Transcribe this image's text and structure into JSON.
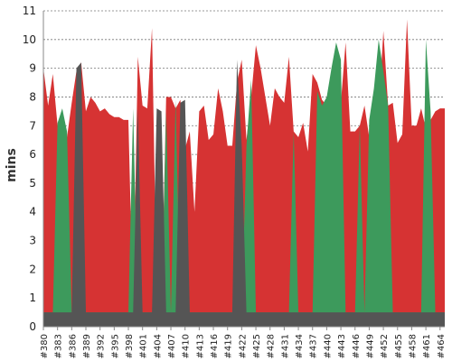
{
  "chart_data": {
    "type": "area",
    "title": "",
    "xlabel": "",
    "ylabel": "mins",
    "ylim": [
      0,
      11
    ],
    "yticks": [
      "0",
      "1",
      "2",
      "3",
      "4",
      "5",
      "6",
      "7",
      "8",
      "9",
      "10",
      "11"
    ],
    "grid": true,
    "legend": "none",
    "x": [
      "#380",
      "#381",
      "#382",
      "#383",
      "#384",
      "#385",
      "#386",
      "#387",
      "#388",
      "#389",
      "#390",
      "#391",
      "#392",
      "#393",
      "#394",
      "#395",
      "#396",
      "#397",
      "#398",
      "#399",
      "#400",
      "#401",
      "#402",
      "#403",
      "#404",
      "#405",
      "#406",
      "#407",
      "#408",
      "#409",
      "#410",
      "#411",
      "#412",
      "#413",
      "#414",
      "#415",
      "#416",
      "#417",
      "#418",
      "#419",
      "#420",
      "#421",
      "#422",
      "#423",
      "#424",
      "#425",
      "#426",
      "#427",
      "#428",
      "#429",
      "#430",
      "#431",
      "#432",
      "#433",
      "#434",
      "#435",
      "#436",
      "#437",
      "#438",
      "#439",
      "#440",
      "#441",
      "#442",
      "#443",
      "#444",
      "#445",
      "#446",
      "#447",
      "#448",
      "#449",
      "#450",
      "#451",
      "#452",
      "#453",
      "#454",
      "#455",
      "#456",
      "#457",
      "#458",
      "#459",
      "#460",
      "#461",
      "#462",
      "#463",
      "#464",
      "#465"
    ],
    "xtick_labels": [
      "#380",
      "#383",
      "#386",
      "#389",
      "#392",
      "#395",
      "#398",
      "#401",
      "#404",
      "#407",
      "#410",
      "#413",
      "#416",
      "#419",
      "#422",
      "#425",
      "#428",
      "#431",
      "#434",
      "#437",
      "#440",
      "#443",
      "#446",
      "#449",
      "#452",
      "#455",
      "#458",
      "#461",
      "#464"
    ],
    "series": [
      {
        "color": "#d63333",
        "values": [
          9.0,
          7.7,
          8.8,
          7.0,
          7.5,
          6.6,
          7.8,
          8.9,
          9.2,
          7.5,
          8.0,
          7.8,
          7.5,
          7.6,
          7.4,
          7.3,
          7.3,
          7.2,
          7.2,
          0.5,
          9.4,
          7.7,
          7.6,
          10.4,
          1.0,
          0.5,
          8.0,
          8.0,
          7.6,
          7.9,
          6.2,
          6.8,
          4.0,
          7.5,
          7.7,
          6.5,
          6.7,
          8.3,
          7.5,
          6.3,
          6.3,
          8.5,
          9.3,
          6.5,
          8.0,
          9.8,
          9.0,
          8.0,
          7.0,
          8.3,
          8.0,
          7.8,
          9.4,
          6.8,
          6.6,
          7.1,
          6.1,
          8.8,
          8.5,
          7.9,
          7.7,
          7.7,
          7.7,
          7.8,
          9.9,
          6.8,
          6.8,
          7.0,
          7.7,
          6.6,
          7.2,
          7.5,
          10.3,
          7.7,
          7.8,
          6.4,
          6.7,
          10.7,
          7.0,
          7.0,
          7.6,
          6.9,
          7.2,
          7.5,
          7.6,
          7.6
        ]
      },
      {
        "color": "#3d9a5c",
        "values": [
          0.5,
          0.5,
          0.5,
          7.1,
          7.6,
          6.8,
          0.5,
          0.5,
          0.5,
          0.5,
          0.5,
          0.5,
          0.5,
          0.5,
          0.5,
          0.5,
          0.5,
          0.5,
          0.5,
          7.6,
          0.5,
          0.5,
          0.5,
          0.5,
          0.5,
          0.5,
          7.5,
          0.5,
          7.9,
          0.5,
          0.5,
          0.5,
          0.5,
          0.5,
          0.5,
          0.5,
          0.5,
          0.5,
          0.5,
          0.5,
          0.5,
          0.5,
          0.5,
          6.3,
          8.6,
          0.5,
          0.5,
          0.5,
          0.5,
          0.5,
          0.5,
          0.5,
          0.5,
          6.8,
          0.5,
          0.5,
          0.5,
          0.5,
          8.2,
          7.7,
          8.0,
          9.0,
          9.9,
          9.3,
          0.5,
          0.5,
          0.5,
          7.0,
          0.5,
          7.2,
          8.3,
          10.0,
          8.9,
          7.7,
          0.5,
          0.5,
          0.5,
          0.5,
          0.5,
          0.5,
          0.5,
          10.0,
          7.5,
          0.5,
          0.5,
          0.5
        ]
      },
      {
        "color": "#555555",
        "values": [
          0.5,
          0.5,
          0.5,
          0.5,
          0.5,
          0.5,
          0.5,
          9.0,
          9.2,
          0.5,
          0.5,
          0.5,
          0.5,
          0.5,
          0.5,
          0.5,
          0.5,
          0.5,
          0.5,
          0.5,
          7.6,
          0.5,
          0.5,
          0.5,
          7.6,
          7.5,
          0.5,
          0.5,
          0.5,
          7.8,
          7.9,
          0.5,
          0.5,
          0.5,
          0.5,
          0.5,
          0.5,
          0.5,
          0.5,
          0.5,
          0.5,
          9.3,
          6.3,
          0.5,
          0.5,
          0.5,
          0.5,
          0.5,
          0.5,
          0.5,
          0.5,
          0.5,
          0.5,
          0.5,
          0.5,
          0.5,
          0.5,
          0.5,
          0.5,
          0.5,
          0.5,
          0.5,
          0.5,
          0.5,
          0.5,
          0.5,
          0.5,
          0.5,
          0.5,
          0.5,
          0.5,
          0.5,
          0.5,
          0.5,
          0.5,
          0.5,
          0.5,
          0.5,
          0.5,
          0.5,
          0.5,
          0.5,
          0.5,
          0.5,
          0.5,
          0.5
        ]
      }
    ]
  }
}
